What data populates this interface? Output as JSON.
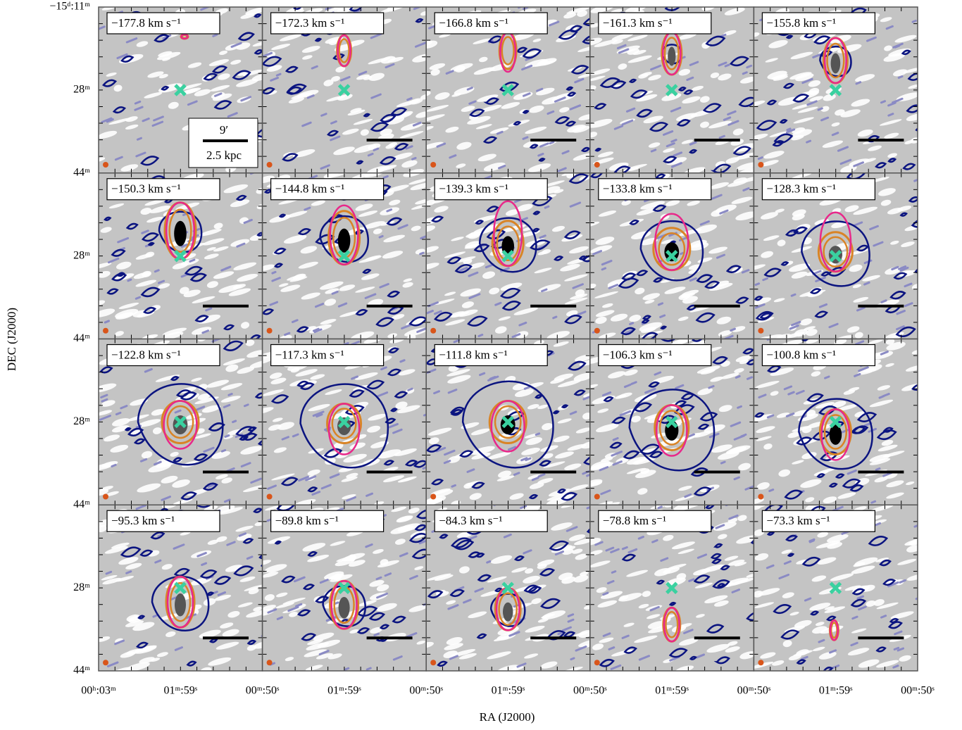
{
  "chart_data": {
    "type": "channel-map",
    "panel_labels": [
      "−177.8 km s⁻¹",
      "−172.3 km s⁻¹",
      "−166.8 km s⁻¹",
      "−161.3 km s⁻¹",
      "−155.8 km s⁻¹",
      "−150.3 km s⁻¹",
      "−144.8 km s⁻¹",
      "−139.3 km s⁻¹",
      "−133.8 km s⁻¹",
      "−128.3 km s⁻¹",
      "−122.8 km s⁻¹",
      "−117.3 km s⁻¹",
      "−111.8 km s⁻¹",
      "−106.3 km s⁻¹",
      "−100.8 km s⁻¹",
      "−95.3 km s⁻¹",
      "−89.8 km s⁻¹",
      "−84.3 km s⁻¹",
      "−78.8 km s⁻¹",
      "−73.3 km s⁻¹"
    ],
    "scale_bar": {
      "angle": "9′",
      "length": "2.5 kpc"
    },
    "x_tick_labels": [
      "00ʰ:03ᵐ",
      "01ᵐ:59ˢ",
      "00ᵐ:50ˢ",
      "01ᵐ:59ˢ",
      "00ᵐ:50ˢ",
      "01ᵐ:59ˢ",
      "00ᵐ:50ˢ",
      "01ᵐ:59ˢ",
      "00ᵐ:50ˢ",
      "01ᵐ:59ˢ",
      "00ᵐ:50ˢ"
    ],
    "y_tick_labels": [
      "−15ᵈ:11ᵐ",
      "28ᵐ",
      "44ᵐ",
      "28ᵐ",
      "44ᵐ",
      "28ᵐ",
      "44ᵐ",
      "28ᵐ",
      "44ᵐ"
    ],
    "xlabel": "RA (J2000)",
    "ylabel": "DEC (J2000)"
  }
}
